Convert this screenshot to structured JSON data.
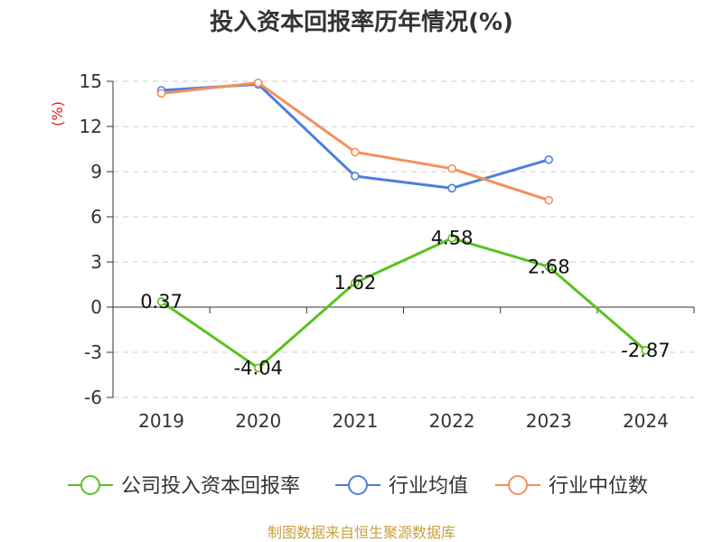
{
  "chart_data": {
    "type": "line",
    "title": "投入资本回报率历年情况(%)",
    "ylabel": "(%)",
    "categories": [
      "2019",
      "2020",
      "2021",
      "2022",
      "2023",
      "2024"
    ],
    "ylim": [
      -6,
      15
    ],
    "yticks": [
      15,
      12,
      9,
      6,
      3,
      0,
      -3,
      -6
    ],
    "grid": true,
    "legend_position": "bottom",
    "series": [
      {
        "name": "公司投入资本回报率",
        "color": "#5ac21f",
        "values": [
          0.37,
          -4.04,
          1.62,
          4.58,
          2.68,
          -2.87
        ],
        "labels": [
          "0.37",
          "-4.04",
          "1.62",
          "4.58",
          "2.68",
          "-2.87"
        ]
      },
      {
        "name": "行业均值",
        "color": "#4e7fdd",
        "values": [
          14.4,
          14.8,
          8.7,
          7.9,
          9.8,
          null
        ]
      },
      {
        "name": "行业中位数",
        "color": "#f5905a",
        "values": [
          14.2,
          14.9,
          10.3,
          9.2,
          7.1,
          null
        ]
      }
    ]
  },
  "footer": {
    "source": "制图数据来自恒生聚源数据库"
  }
}
